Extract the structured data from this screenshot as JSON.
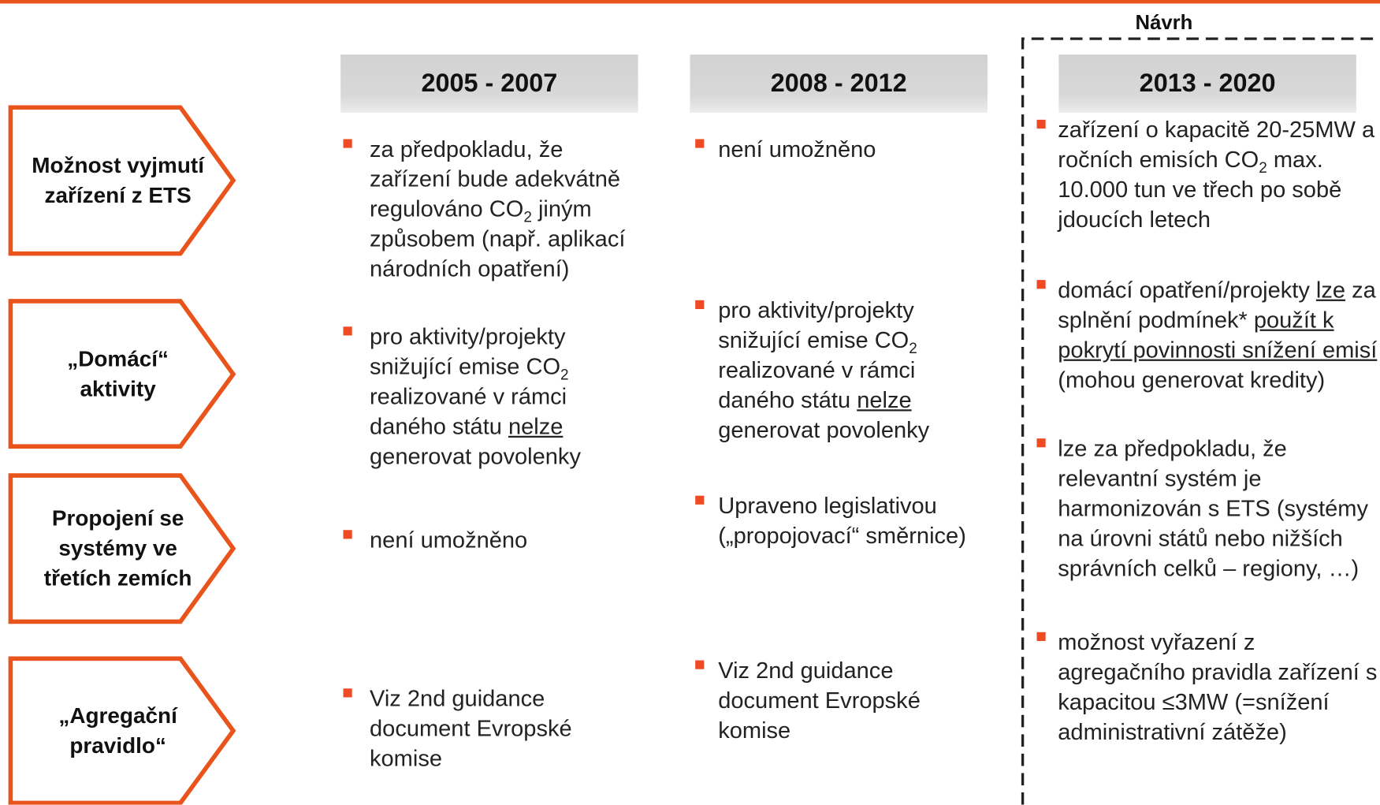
{
  "top_label": "Návrh",
  "periods": [
    "2005 - 2007",
    "2008 - 2012",
    "2013 - 2020"
  ],
  "rows": [
    "Možnost vyjmutí zařízení z ETS",
    "„Domácí“ aktivity",
    "Propojení se systémy ve třetích zemích",
    "„Agregační pravidlo“"
  ],
  "cells": [
    [
      [
        "za předpokladu, že zařízení bude adekvátně regulováno CO",
        {
          "text": "2",
          "format": "sub"
        },
        " jiným způsobem (např. aplikací národních opatření)"
      ],
      [
        "pro aktivity/projekty snižující emise CO",
        {
          "text": "2",
          "format": "sub"
        },
        " realizované v rámci daného státu ",
        {
          "text": "nelze",
          "format": "underline"
        },
        " generovat povolenky"
      ],
      [
        "není umožněno"
      ],
      [
        "Viz 2nd guidance document Evropské komise"
      ]
    ],
    [
      [
        "není umožněno"
      ],
      [
        "pro aktivity/projekty snižující emise CO",
        {
          "text": "2",
          "format": "sub"
        },
        " realizované v rámci daného státu ",
        {
          "text": "nelze",
          "format": "underline"
        },
        " generovat povolenky"
      ],
      [
        "Upraveno legislativou („propojovací“ směrnice)"
      ],
      [
        "Viz 2nd guidance document Evropské komise"
      ]
    ],
    [
      [
        "zařízení o kapacitě 20-25MW a ročních emisích CO",
        {
          "text": "2",
          "format": "sub"
        },
        " max. 10.000 tun ve třech po sobě jdoucích letech"
      ],
      [
        "domácí opatření/projekty ",
        {
          "text": "lze",
          "format": "underline"
        },
        " za splnění podmínek* ",
        {
          "text": "použít k pokrytí povinnosti snížení emisí",
          "format": "underline"
        },
        " (mohou generovat kredity)"
      ],
      [
        "lze za předpokladu, že relevantní systém je harmonizován s ETS (systémy na úrovni států nebo nižších správních celků – regiony, …)"
      ],
      [
        "možnost vyřazení z agregačního pravidla zařízení s kapacitou ≤3MW (=snížení administrativní zátěže)"
      ]
    ]
  ]
}
